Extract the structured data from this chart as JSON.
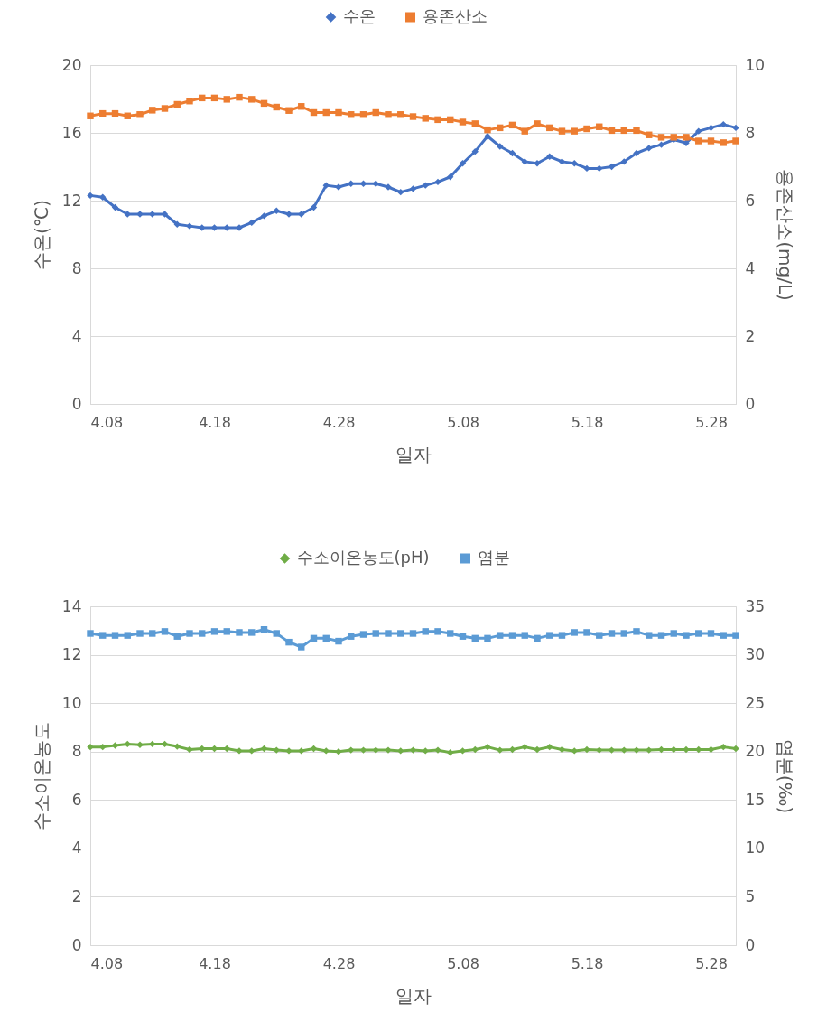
{
  "chart_data": [
    {
      "type": "line",
      "xlabel": "일자",
      "ylabel": "수온(℃)",
      "y2label": "용존산소(mg/L)",
      "x": [
        "--04-08",
        "--04-09",
        "--04-10",
        "--04-11",
        "--04-12",
        "--04-13",
        "--04-14",
        "--04-15",
        "--04-16",
        "--04-17",
        "--04-18",
        "--04-19",
        "--04-20",
        "--04-21",
        "--04-22",
        "--04-23",
        "--04-24",
        "--04-25",
        "--04-26",
        "--04-27",
        "--04-28",
        "--04-29",
        "--04-30",
        "--05-01",
        "--05-02",
        "--05-03",
        "--05-04",
        "--05-05",
        "--05-06",
        "--05-07",
        "--05-08",
        "--05-09",
        "--05-10",
        "--05-11",
        "--05-12",
        "--05-13",
        "--05-14",
        "--05-15",
        "--05-16",
        "--05-17",
        "--05-18",
        "--05-19",
        "--05-20",
        "--05-21",
        "--05-22",
        "--05-23",
        "--05-24",
        "--05-25",
        "--05-26",
        "--05-27",
        "--05-28",
        "--05-29",
        "--05-30"
      ],
      "xlim": [
        "--04-08",
        "--05-30"
      ],
      "xticks": [
        {
          "value": "--04-08",
          "label": "4.08"
        },
        {
          "value": "--04-18",
          "label": "4.18"
        },
        {
          "value": "--04-28",
          "label": "4.28"
        },
        {
          "value": "--05-08",
          "label": "5.08"
        },
        {
          "value": "--05-18",
          "label": "5.18"
        },
        {
          "value": "--05-28",
          "label": "5.28"
        }
      ],
      "ylim": [
        0,
        20
      ],
      "yticks": [
        0,
        4,
        8,
        12,
        16,
        20
      ],
      "y2lim": [
        0,
        10
      ],
      "y2ticks": [
        0,
        2,
        4,
        6,
        8,
        10
      ],
      "grid": "y",
      "legend": "top",
      "line_style": "solid",
      "series": [
        {
          "name": "수온",
          "color": "#4472c4",
          "marker": "diamond",
          "values": [
            12.3,
            12.2,
            11.6,
            11.2,
            11.2,
            11.2,
            11.2,
            10.6,
            10.5,
            10.4,
            10.4,
            10.4,
            10.4,
            10.7,
            11.1,
            11.4,
            11.2,
            11.2,
            11.6,
            12.9,
            12.8,
            13.0,
            13.0,
            13.0,
            12.8,
            12.5,
            12.7,
            12.9,
            13.1,
            13.4,
            14.2,
            14.9,
            15.8,
            15.2,
            14.8,
            14.3,
            14.2,
            14.6,
            14.3,
            14.2,
            13.9,
            13.9,
            14.0,
            14.3,
            14.8,
            15.1,
            15.3,
            15.6,
            15.4,
            16.1,
            16.3,
            16.5,
            16.3
          ]
        },
        {
          "name": "용존산소",
          "color": "#ed7d31",
          "marker": "square",
          "axis": "y2",
          "values": [
            8.5,
            8.57,
            8.57,
            8.5,
            8.54,
            8.67,
            8.72,
            8.84,
            8.94,
            9.03,
            9.03,
            8.99,
            9.05,
            8.99,
            8.87,
            8.76,
            8.66,
            8.78,
            8.6,
            8.6,
            8.6,
            8.54,
            8.54,
            8.6,
            8.54,
            8.54,
            8.48,
            8.43,
            8.39,
            8.39,
            8.32,
            8.27,
            8.09,
            8.15,
            8.23,
            8.05,
            8.27,
            8.15,
            8.05,
            8.05,
            8.12,
            8.18,
            8.07,
            8.07,
            8.07,
            7.94,
            7.87,
            7.87,
            7.87,
            7.76,
            7.76,
            7.71,
            7.76
          ]
        }
      ]
    },
    {
      "type": "line",
      "xlabel": "일자",
      "ylabel": "수소이온농도",
      "y2label": "염분(‰)",
      "x": [
        "--04-08",
        "--04-09",
        "--04-10",
        "--04-11",
        "--04-12",
        "--04-13",
        "--04-14",
        "--04-15",
        "--04-16",
        "--04-17",
        "--04-18",
        "--04-19",
        "--04-20",
        "--04-21",
        "--04-22",
        "--04-23",
        "--04-24",
        "--04-25",
        "--04-26",
        "--04-27",
        "--04-28",
        "--04-29",
        "--04-30",
        "--05-01",
        "--05-02",
        "--05-03",
        "--05-04",
        "--05-05",
        "--05-06",
        "--05-07",
        "--05-08",
        "--05-09",
        "--05-10",
        "--05-11",
        "--05-12",
        "--05-13",
        "--05-14",
        "--05-15",
        "--05-16",
        "--05-17",
        "--05-18",
        "--05-19",
        "--05-20",
        "--05-21",
        "--05-22",
        "--05-23",
        "--05-24",
        "--05-25",
        "--05-26",
        "--05-27",
        "--05-28",
        "--05-29",
        "--05-30"
      ],
      "xlim": [
        "--04-08",
        "--05-30"
      ],
      "xticks": [
        {
          "value": "--04-08",
          "label": "4.08"
        },
        {
          "value": "--04-18",
          "label": "4.18"
        },
        {
          "value": "--04-28",
          "label": "4.28"
        },
        {
          "value": "--05-08",
          "label": "5.08"
        },
        {
          "value": "--05-18",
          "label": "5.18"
        },
        {
          "value": "--05-28",
          "label": "5.28"
        }
      ],
      "ylim": [
        0,
        14
      ],
      "yticks": [
        0,
        2,
        4,
        6,
        8,
        10,
        12,
        14
      ],
      "y2lim": [
        0,
        35
      ],
      "y2ticks": [
        0,
        5,
        10,
        15,
        20,
        25,
        30,
        35
      ],
      "grid": "y",
      "legend": "top",
      "line_style": "solid",
      "series": [
        {
          "name": "수소이온농도(pH)",
          "color": "#70ad47",
          "marker": "diamond",
          "values": [
            8.19,
            8.19,
            8.25,
            8.31,
            8.28,
            8.31,
            8.31,
            8.21,
            8.08,
            8.12,
            8.12,
            8.12,
            8.03,
            8.03,
            8.12,
            8.06,
            8.03,
            8.03,
            8.12,
            8.03,
            8.0,
            8.06,
            8.06,
            8.06,
            8.06,
            8.03,
            8.06,
            8.03,
            8.06,
            7.96,
            8.03,
            8.08,
            8.19,
            8.06,
            8.08,
            8.19,
            8.08,
            8.19,
            8.08,
            8.03,
            8.08,
            8.06,
            8.06,
            8.06,
            8.06,
            8.06,
            8.08,
            8.08,
            8.08,
            8.08,
            8.08,
            8.19,
            8.12
          ]
        },
        {
          "name": "염분",
          "color": "#5b9bd5",
          "marker": "square",
          "axis": "y2",
          "values": [
            32.2,
            32.0,
            32.0,
            32.0,
            32.2,
            32.2,
            32.4,
            31.9,
            32.2,
            32.2,
            32.4,
            32.4,
            32.3,
            32.3,
            32.6,
            32.2,
            31.3,
            30.8,
            31.7,
            31.7,
            31.4,
            31.9,
            32.1,
            32.2,
            32.2,
            32.2,
            32.2,
            32.4,
            32.4,
            32.2,
            31.9,
            31.7,
            31.7,
            32.0,
            32.0,
            32.0,
            31.7,
            32.0,
            32.0,
            32.3,
            32.3,
            32.0,
            32.2,
            32.2,
            32.4,
            32.0,
            32.0,
            32.2,
            32.0,
            32.2,
            32.2,
            32.0,
            32.0
          ]
        }
      ]
    }
  ]
}
